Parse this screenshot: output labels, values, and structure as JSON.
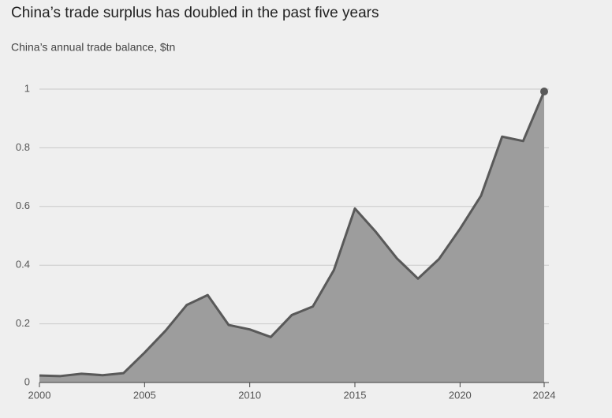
{
  "chart_data": {
    "type": "area",
    "title": "China’s trade surplus has doubled in the past five years",
    "subtitle": "China’s annual trade balance, $tn",
    "x": [
      2000,
      2001,
      2002,
      2003,
      2004,
      2005,
      2006,
      2007,
      2008,
      2009,
      2010,
      2011,
      2012,
      2013,
      2014,
      2015,
      2016,
      2017,
      2018,
      2019,
      2020,
      2021,
      2022,
      2023,
      2024
    ],
    "values": [
      0.024,
      0.022,
      0.03,
      0.025,
      0.032,
      0.102,
      0.177,
      0.264,
      0.298,
      0.196,
      0.181,
      0.155,
      0.23,
      0.259,
      0.383,
      0.593,
      0.513,
      0.423,
      0.354,
      0.421,
      0.524,
      0.637,
      0.838,
      0.823,
      0.992
    ],
    "color": "#9d9d9d",
    "line_color": "#595959",
    "xlim": [
      2000,
      2024
    ],
    "xticks": [
      2000,
      2005,
      2010,
      2015,
      2020,
      2024
    ],
    "ylim": [
      0,
      1
    ],
    "yticks": [
      0,
      0.2,
      0.4,
      0.6,
      0.8,
      1
    ],
    "grid": true
  }
}
